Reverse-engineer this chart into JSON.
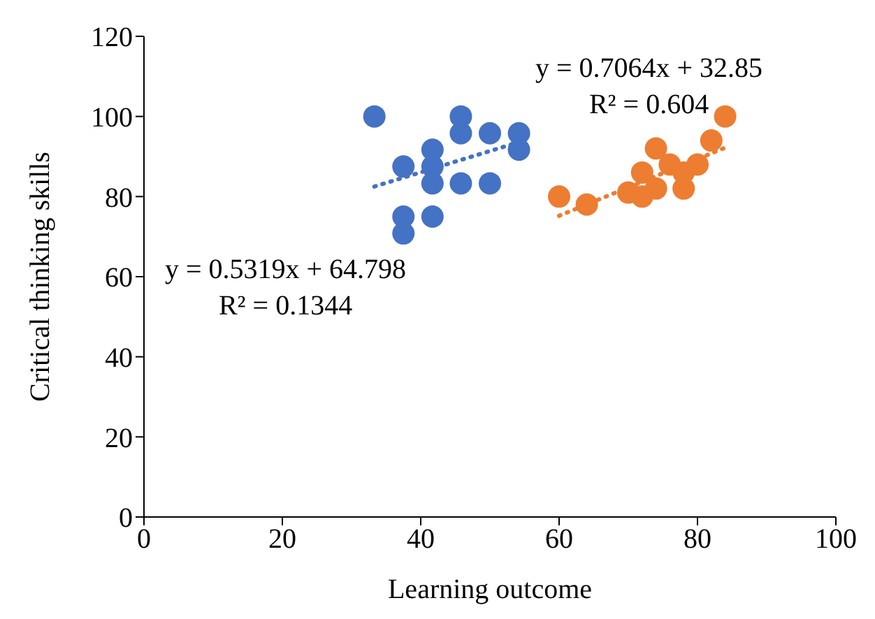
{
  "chart_data": {
    "type": "scatter",
    "xlabel": "Learning outcome",
    "ylabel": "Critical thinking skills",
    "xlim": [
      0,
      100
    ],
    "xticks": [
      0,
      20,
      40,
      60,
      80,
      100
    ],
    "ylim": [
      0,
      120
    ],
    "yticks": [
      0,
      20,
      40,
      60,
      80,
      100,
      120
    ],
    "marker": "circle",
    "series": [
      {
        "color": "#4472c4",
        "x": [
          33.3,
          37.5,
          37.5,
          37.5,
          41.7,
          41.7,
          41.7,
          41.7,
          45.8,
          45.8,
          45.8,
          50,
          50,
          54.2,
          54.2
        ],
        "values": [
          100,
          87.5,
          75,
          70.8,
          91.7,
          87.5,
          83.3,
          75,
          100,
          95.8,
          83.3,
          95.8,
          83.3,
          95.8,
          91.7
        ]
      },
      {
        "color": "#ed7d31",
        "x": [
          60,
          64,
          70,
          72,
          72,
          74,
          74,
          76,
          78,
          78,
          80,
          82,
          84
        ],
        "values": [
          80,
          78,
          81,
          80,
          86,
          82,
          92,
          88,
          82,
          86,
          88,
          94,
          100
        ]
      },
      {
        "type": "line",
        "color": "#4472c4",
        "line_style": "dotted",
        "marker": "none",
        "x": [
          33.3,
          54.2
        ],
        "values": [
          82.5,
          93.6
        ]
      },
      {
        "type": "line",
        "color": "#ed7d31",
        "line_style": "dotted",
        "marker": "none",
        "x": [
          60,
          84
        ],
        "values": [
          75.2,
          92.2
        ]
      }
    ],
    "annotations": [
      "y = 0.5319x + 64.798\nR² = 0.1344",
      "y = 0.7064x + 32.85\nR² = 0.604"
    ]
  }
}
